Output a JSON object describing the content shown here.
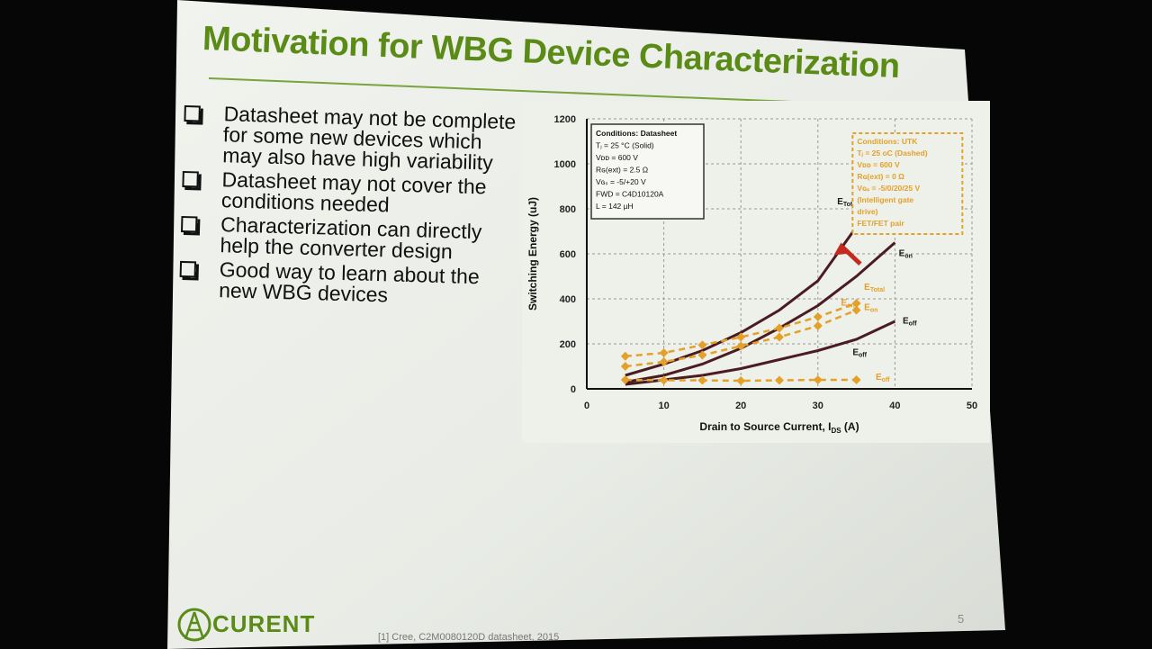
{
  "slide": {
    "title": "Motivation for WBG Device Characterization",
    "page_number": "5",
    "footnote": "[1] Cree, C2M0080120D datasheet, 2015",
    "logo_text": "CURENT",
    "accent_color": "#5b8b17"
  },
  "bullets": [
    {
      "text": "Datasheet may not be complete for some new devices which may also have high variability"
    },
    {
      "text": "Datasheet may not cover the conditions needed"
    },
    {
      "text": "Characterization can directly help the converter design"
    },
    {
      "text": "Good way to learn about the new WBG devices"
    }
  ],
  "chart_data": {
    "type": "line",
    "title": "",
    "xlabel": "Drain to Source Current, I",
    "xlabel_sub": "DS",
    "xlabel_unit": " (A)",
    "ylabel": "Switching Energy (uJ)",
    "xlim": [
      0,
      50
    ],
    "ylim": [
      0,
      1200
    ],
    "x_ticks": [
      "0",
      "10",
      "20",
      "30",
      "40",
      "50"
    ],
    "y_ticks": [
      "0",
      "200",
      "400",
      "600",
      "800",
      "1000",
      "1200"
    ],
    "grid": true,
    "conditions_datasheet": [
      "Conditions: Datasheet",
      "Tⱼ = 25 °C      (Solid)",
      "Vᴅᴅ = 600 V",
      "Rɢ(ext) = 2.5 Ω",
      "Vɢₛ = -5/+20 V",
      "FWD = C4D10120A",
      "L = 142 µH"
    ],
    "conditions_utk": [
      "Conditions:    UTK",
      "Tⱼ = 25 oC   (Dashed)",
      "Vᴅᴅ = 600 V",
      "Rɢ(ext) = 0 Ω",
      "Vɢₛ = -5/0/20/25 V",
      "(Intelligent gate",
      "drive)",
      "FET/FET pair"
    ],
    "series": [
      {
        "name": "Etotal",
        "style": "solid",
        "color": "#4a1c22",
        "x": [
          5,
          10,
          15,
          20,
          25,
          30,
          35
        ],
        "y": [
          60,
          110,
          170,
          250,
          350,
          480,
          720
        ]
      },
      {
        "name": "Eon",
        "style": "solid",
        "color": "#4a1c22",
        "x": [
          5,
          10,
          15,
          20,
          25,
          30,
          35,
          40
        ],
        "y": [
          30,
          60,
          110,
          180,
          270,
          370,
          500,
          650
        ]
      },
      {
        "name": "Eoff",
        "style": "solid",
        "color": "#4a1c22",
        "x": [
          5,
          10,
          15,
          20,
          25,
          30,
          35,
          40
        ],
        "y": [
          20,
          40,
          60,
          90,
          130,
          170,
          220,
          300
        ]
      },
      {
        "name": "Etotal",
        "style": "dashed",
        "color": "#e3a12a",
        "x": [
          5,
          10,
          15,
          20,
          25,
          30,
          35
        ],
        "y": [
          145,
          160,
          195,
          230,
          270,
          320,
          380
        ]
      },
      {
        "name": "Eon",
        "style": "dashed",
        "color": "#e3a12a",
        "x": [
          5,
          10,
          15,
          20,
          25,
          30,
          35
        ],
        "y": [
          100,
          120,
          150,
          190,
          230,
          280,
          350
        ]
      },
      {
        "name": "Eoff",
        "style": "dashed",
        "color": "#e3a12a",
        "x": [
          5,
          10,
          15,
          20,
          25,
          30,
          35
        ],
        "y": [
          40,
          38,
          38,
          36,
          38,
          40,
          40
        ]
      }
    ],
    "series_labels": [
      {
        "text": "E",
        "sub": "Total",
        "x": 32.5,
        "y": 820,
        "color": "#1a1a1a"
      },
      {
        "text": "E",
        "sub": "on",
        "x": 40.5,
        "y": 590,
        "color": "#1a1a1a"
      },
      {
        "text": "E",
        "sub": "off",
        "x": 41,
        "y": 290,
        "color": "#1a1a1a"
      },
      {
        "text": "E",
        "sub": "Total",
        "x": 36,
        "y": 440,
        "color": "#e3a12a"
      },
      {
        "text": "E",
        "sub": "on",
        "x": 36,
        "y": 350,
        "color": "#e3a12a"
      },
      {
        "text": "E",
        "sub": "off",
        "x": 37.5,
        "y": 40,
        "color": "#e3a12a"
      },
      {
        "text": "E",
        "sub": "on",
        "x": 33,
        "y": 370,
        "color": "#e3a12a"
      },
      {
        "text": "E",
        "sub": "off",
        "x": 34.5,
        "y": 150,
        "color": "#1a1a1a"
      }
    ]
  }
}
